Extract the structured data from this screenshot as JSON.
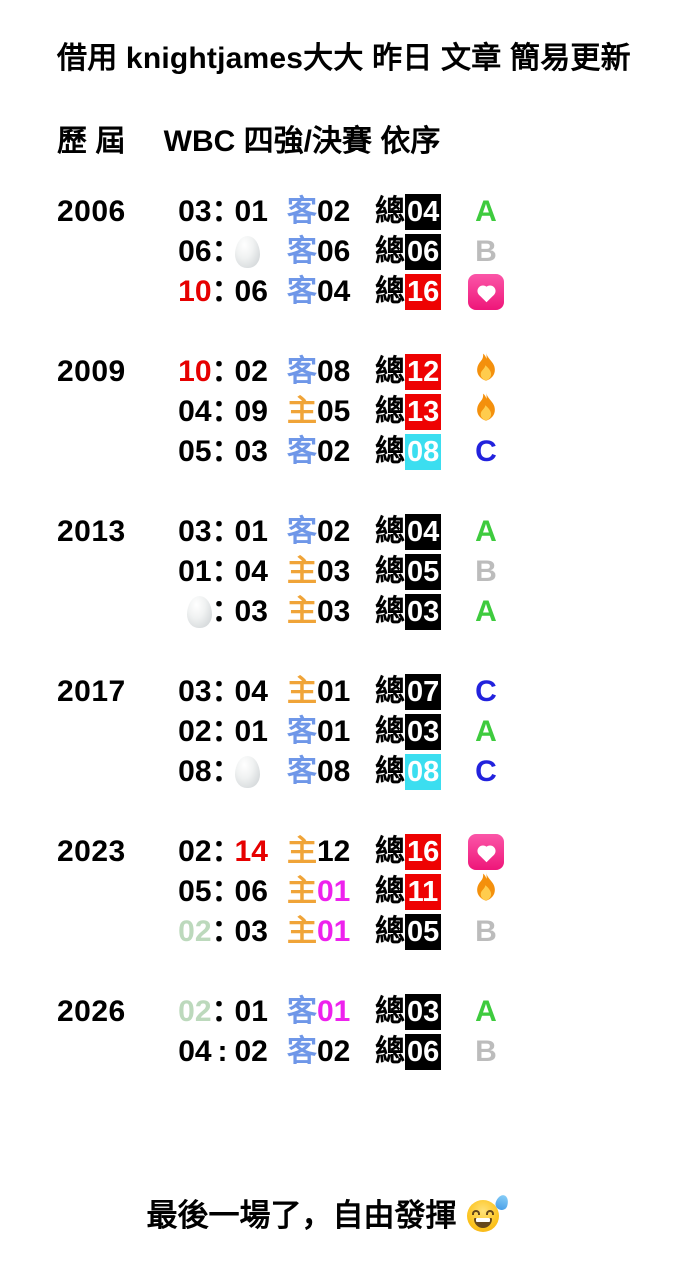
{
  "title": "借用 knightjames大大 昨日 文章 簡易更新",
  "subtitle": "歷 屆　 WBC 四強/決賽 依序",
  "footer": {
    "text": "最後一場了，自由發揮",
    "emoji": "sweat-smile-emoji"
  },
  "icons": {
    "egg": "egg-emoji",
    "fire": "fire-emoji",
    "heart": "heart-decoration-emoji"
  },
  "colors": {
    "text_black": "#000000",
    "text_red": "#e60000",
    "text_pale_green": "#bcd9bc",
    "text_magenta": "#ee22ee",
    "venue_away_blue": "#6f97e8",
    "venue_home_orange": "#f0a438",
    "box_black": "#000000",
    "box_red": "#ee0202",
    "box_cyan": "#3bdef0",
    "letter_a_green": "#3ecb3e",
    "letter_b_gray": "#bcbcbc",
    "letter_c_blue": "#2222dd",
    "box_text_white": "#ffffff"
  },
  "sections": [
    {
      "year": "2006",
      "rows": [
        {
          "score": {
            "left": {
              "type": "num",
              "text": "03",
              "color": "#000000"
            },
            "colon": "：",
            "right": {
              "type": "num",
              "text": "01",
              "color": "#000000"
            }
          },
          "venue": {
            "char": "客",
            "char_color": "#6f97e8",
            "num": "02",
            "num_color": "#000000"
          },
          "total": {
            "label": "總",
            "num": "04",
            "box_color": "#000000"
          },
          "result": {
            "type": "letter",
            "text": "A",
            "color": "#3ecb3e"
          }
        },
        {
          "score": {
            "left": {
              "type": "num",
              "text": "06",
              "color": "#000000"
            },
            "colon": "：",
            "right": {
              "type": "egg"
            }
          },
          "venue": {
            "char": "客",
            "char_color": "#6f97e8",
            "num": "06",
            "num_color": "#000000"
          },
          "total": {
            "label": "總",
            "num": "06",
            "box_color": "#000000"
          },
          "result": {
            "type": "letter",
            "text": "B",
            "color": "#bcbcbc"
          }
        },
        {
          "score": {
            "left": {
              "type": "num",
              "text": "10",
              "color": "#e60000"
            },
            "colon": "：",
            "right": {
              "type": "num",
              "text": "06",
              "color": "#000000"
            }
          },
          "venue": {
            "char": "客",
            "char_color": "#6f97e8",
            "num": "04",
            "num_color": "#000000"
          },
          "total": {
            "label": "總",
            "num": "16",
            "box_color": "#ee0202"
          },
          "result": {
            "type": "heart"
          }
        }
      ]
    },
    {
      "year": "2009",
      "rows": [
        {
          "score": {
            "left": {
              "type": "num",
              "text": "10",
              "color": "#e60000"
            },
            "colon": "：",
            "right": {
              "type": "num",
              "text": "02",
              "color": "#000000"
            }
          },
          "venue": {
            "char": "客",
            "char_color": "#6f97e8",
            "num": "08",
            "num_color": "#000000"
          },
          "total": {
            "label": "總",
            "num": "12",
            "box_color": "#ee0202"
          },
          "result": {
            "type": "fire"
          }
        },
        {
          "score": {
            "left": {
              "type": "num",
              "text": "04",
              "color": "#000000"
            },
            "colon": "：",
            "right": {
              "type": "num",
              "text": "09",
              "color": "#000000"
            }
          },
          "venue": {
            "char": "主",
            "char_color": "#f0a438",
            "num": "05",
            "num_color": "#000000"
          },
          "total": {
            "label": "總",
            "num": "13",
            "box_color": "#ee0202"
          },
          "result": {
            "type": "fire"
          }
        },
        {
          "score": {
            "left": {
              "type": "num",
              "text": "05",
              "color": "#000000"
            },
            "colon": "：",
            "right": {
              "type": "num",
              "text": "03",
              "color": "#000000"
            }
          },
          "venue": {
            "char": "客",
            "char_color": "#6f97e8",
            "num": "02",
            "num_color": "#000000"
          },
          "total": {
            "label": "總",
            "num": "08",
            "box_color": "#3bdef0"
          },
          "result": {
            "type": "letter",
            "text": "C",
            "color": "#2222dd"
          }
        }
      ]
    },
    {
      "year": "2013",
      "rows": [
        {
          "score": {
            "left": {
              "type": "num",
              "text": "03",
              "color": "#000000"
            },
            "colon": "：",
            "right": {
              "type": "num",
              "text": "01",
              "color": "#000000"
            }
          },
          "venue": {
            "char": "客",
            "char_color": "#6f97e8",
            "num": "02",
            "num_color": "#000000"
          },
          "total": {
            "label": "總",
            "num": "04",
            "box_color": "#000000"
          },
          "result": {
            "type": "letter",
            "text": "A",
            "color": "#3ecb3e"
          }
        },
        {
          "score": {
            "left": {
              "type": "num",
              "text": "01",
              "color": "#000000"
            },
            "colon": "：",
            "right": {
              "type": "num",
              "text": "04",
              "color": "#000000"
            }
          },
          "venue": {
            "char": "主",
            "char_color": "#f0a438",
            "num": "03",
            "num_color": "#000000"
          },
          "total": {
            "label": "總",
            "num": "05",
            "box_color": "#000000"
          },
          "result": {
            "type": "letter",
            "text": "B",
            "color": "#bcbcbc"
          }
        },
        {
          "score": {
            "left": {
              "type": "egg"
            },
            "colon": "：",
            "right": {
              "type": "num",
              "text": "03",
              "color": "#000000"
            }
          },
          "venue": {
            "char": "主",
            "char_color": "#f0a438",
            "num": "03",
            "num_color": "#000000"
          },
          "total": {
            "label": "總",
            "num": "03",
            "box_color": "#000000"
          },
          "result": {
            "type": "letter",
            "text": "A",
            "color": "#3ecb3e"
          }
        }
      ]
    },
    {
      "year": "2017",
      "rows": [
        {
          "score": {
            "left": {
              "type": "num",
              "text": "03",
              "color": "#000000"
            },
            "colon": "：",
            "right": {
              "type": "num",
              "text": "04",
              "color": "#000000"
            }
          },
          "venue": {
            "char": "主",
            "char_color": "#f0a438",
            "num": "01",
            "num_color": "#000000"
          },
          "total": {
            "label": "總",
            "num": "07",
            "box_color": "#000000"
          },
          "result": {
            "type": "letter",
            "text": "C",
            "color": "#2222dd"
          }
        },
        {
          "score": {
            "left": {
              "type": "num",
              "text": "02",
              "color": "#000000"
            },
            "colon": "：",
            "right": {
              "type": "num",
              "text": "01",
              "color": "#000000"
            }
          },
          "venue": {
            "char": "客",
            "char_color": "#6f97e8",
            "num": "01",
            "num_color": "#000000"
          },
          "total": {
            "label": "總",
            "num": "03",
            "box_color": "#000000"
          },
          "result": {
            "type": "letter",
            "text": "A",
            "color": "#3ecb3e"
          }
        },
        {
          "score": {
            "left": {
              "type": "num",
              "text": "08",
              "color": "#000000"
            },
            "colon": "：",
            "right": {
              "type": "egg"
            }
          },
          "venue": {
            "char": "客",
            "char_color": "#6f97e8",
            "num": "08",
            "num_color": "#000000"
          },
          "total": {
            "label": "總",
            "num": "08",
            "box_color": "#3bdef0"
          },
          "result": {
            "type": "letter",
            "text": "C",
            "color": "#2222dd"
          }
        }
      ]
    },
    {
      "year": "2023",
      "rows": [
        {
          "score": {
            "left": {
              "type": "num",
              "text": "02",
              "color": "#000000"
            },
            "colon": "：",
            "right": {
              "type": "num",
              "text": "14",
              "color": "#e60000"
            }
          },
          "venue": {
            "char": "主",
            "char_color": "#f0a438",
            "num": "12",
            "num_color": "#000000"
          },
          "total": {
            "label": "總",
            "num": "16",
            "box_color": "#ee0202"
          },
          "result": {
            "type": "heart"
          }
        },
        {
          "score": {
            "left": {
              "type": "num",
              "text": "05",
              "color": "#000000"
            },
            "colon": "：",
            "right": {
              "type": "num",
              "text": "06",
              "color": "#000000"
            }
          },
          "venue": {
            "char": "主",
            "char_color": "#f0a438",
            "num": "01",
            "num_color": "#ee22ee"
          },
          "total": {
            "label": "總",
            "num": "11",
            "box_color": "#ee0202"
          },
          "result": {
            "type": "fire"
          }
        },
        {
          "score": {
            "left": {
              "type": "num",
              "text": "02",
              "color": "#bcd9bc"
            },
            "colon": "：",
            "right": {
              "type": "num",
              "text": "03",
              "color": "#000000"
            }
          },
          "venue": {
            "char": "主",
            "char_color": "#f0a438",
            "num": "01",
            "num_color": "#ee22ee"
          },
          "total": {
            "label": "總",
            "num": "05",
            "box_color": "#000000"
          },
          "result": {
            "type": "letter",
            "text": "B",
            "color": "#bcbcbc"
          }
        }
      ]
    },
    {
      "year": "2026",
      "rows": [
        {
          "score": {
            "left": {
              "type": "num",
              "text": "02",
              "color": "#bcd9bc"
            },
            "colon": "：",
            "right": {
              "type": "num",
              "text": "01",
              "color": "#000000"
            }
          },
          "venue": {
            "char": "客",
            "char_color": "#6f97e8",
            "num": "01",
            "num_color": "#ee22ee"
          },
          "total": {
            "label": "總",
            "num": "03",
            "box_color": "#000000"
          },
          "result": {
            "type": "letter",
            "text": "A",
            "color": "#3ecb3e"
          }
        },
        {
          "score": {
            "left": {
              "type": "num",
              "text": "04",
              "color": "#000000"
            },
            "colon": ":",
            "right": {
              "type": "num",
              "text": "02",
              "color": "#000000"
            }
          },
          "venue": {
            "char": "客",
            "char_color": "#6f97e8",
            "num": "02",
            "num_color": "#000000"
          },
          "total": {
            "label": "總",
            "num": "06",
            "box_color": "#000000"
          },
          "result": {
            "type": "letter",
            "text": "B",
            "color": "#bcbcbc"
          }
        }
      ]
    }
  ]
}
